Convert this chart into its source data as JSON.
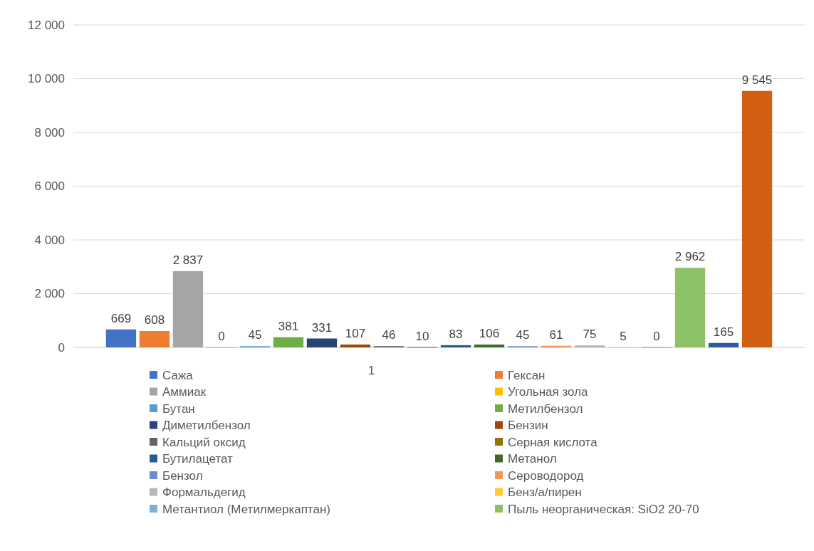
{
  "chart_data": {
    "type": "bar",
    "categories": [
      "1"
    ],
    "ylim": [
      0,
      12000
    ],
    "yticks": [
      {
        "value": 0,
        "label": "0"
      },
      {
        "value": 2000,
        "label": "2 000"
      },
      {
        "value": 4000,
        "label": "4 000"
      },
      {
        "value": 6000,
        "label": "6 000"
      },
      {
        "value": 8000,
        "label": "8 000"
      },
      {
        "value": 10000,
        "label": "10 000"
      },
      {
        "value": 12000,
        "label": "12 000"
      }
    ],
    "grid": "y",
    "legend": "bottom",
    "series": [
      {
        "name": "Сажа",
        "color": "#4472c4",
        "values": [
          669
        ],
        "value_labels": [
          "669"
        ]
      },
      {
        "name": "Гексан",
        "color": "#ed7d31",
        "values": [
          608
        ],
        "value_labels": [
          "608"
        ]
      },
      {
        "name": "Аммиак",
        "color": "#a5a5a5",
        "values": [
          2837
        ],
        "value_labels": [
          "2 837"
        ]
      },
      {
        "name": "Угольная зола",
        "color": "#ffc000",
        "values": [
          0
        ],
        "value_labels": [
          "0"
        ]
      },
      {
        "name": "Бутан",
        "color": "#5b9bd5",
        "values": [
          45
        ],
        "value_labels": [
          "45"
        ]
      },
      {
        "name": "Метилбензол",
        "color": "#70ad47",
        "values": [
          381
        ],
        "value_labels": [
          "381"
        ]
      },
      {
        "name": "Диметилбензол",
        "color": "#264478",
        "values": [
          331
        ],
        "value_labels": [
          "331"
        ]
      },
      {
        "name": "Бензин",
        "color": "#9e480e",
        "values": [
          107
        ],
        "value_labels": [
          "107"
        ]
      },
      {
        "name": "Кальций оксид",
        "color": "#636363",
        "values": [
          46
        ],
        "value_labels": [
          "46"
        ]
      },
      {
        "name": "Серная кислота",
        "color": "#997300",
        "values": [
          10
        ],
        "value_labels": [
          "10"
        ]
      },
      {
        "name": "Бутилацетат",
        "color": "#255e91",
        "values": [
          83
        ],
        "value_labels": [
          "83"
        ]
      },
      {
        "name": "Метанол",
        "color": "#43682b",
        "values": [
          106
        ],
        "value_labels": [
          "106"
        ]
      },
      {
        "name": "Бензол",
        "color": "#698ed0",
        "values": [
          45
        ],
        "value_labels": [
          "45"
        ]
      },
      {
        "name": "Сероводород",
        "color": "#f1975a",
        "values": [
          61
        ],
        "value_labels": [
          "61"
        ]
      },
      {
        "name": "Формальдегид",
        "color": "#b7b7b7",
        "values": [
          75
        ],
        "value_labels": [
          "75"
        ]
      },
      {
        "name": "Бенз/а/пирен",
        "color": "#ffcd33",
        "values": [
          5
        ],
        "value_labels": [
          "5"
        ]
      },
      {
        "name": "Метантиол (Метилмеркаптан)",
        "color": "#7cafdd",
        "values": [
          0
        ],
        "value_labels": [
          "0"
        ]
      },
      {
        "name": "Пыль неорганическая: SiO2 20-70",
        "color": "#8cc168",
        "values": [
          2962
        ],
        "value_labels": [
          "2 962"
        ]
      },
      {
        "color": "#335aa1",
        "values": [
          165
        ],
        "value_labels": [
          "165"
        ]
      },
      {
        "color": "#d26012",
        "values": [
          9545
        ],
        "value_labels": [
          "9 545"
        ]
      }
    ]
  }
}
